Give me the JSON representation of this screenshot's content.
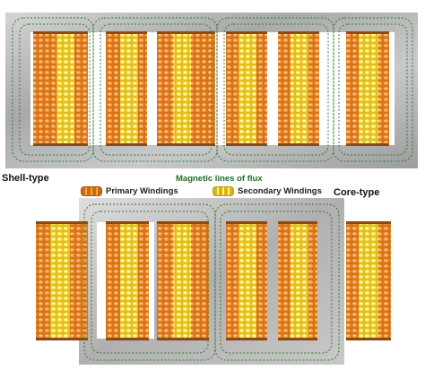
{
  "labels": {
    "shell_type": "Shell-type",
    "core_type": "Core-type",
    "flux": "Magnetic lines of flux"
  },
  "legend": {
    "primary": "Primary Windings",
    "secondary": "Secondary Windings"
  },
  "colors": {
    "primary_winding": "#d9731a",
    "secondary_winding": "#f2d23a",
    "core_steel": "#b4b4b4",
    "flux_lines": "#2f7d32",
    "label_text": "#111111",
    "flux_label_text": "#1f6e2a"
  }
}
